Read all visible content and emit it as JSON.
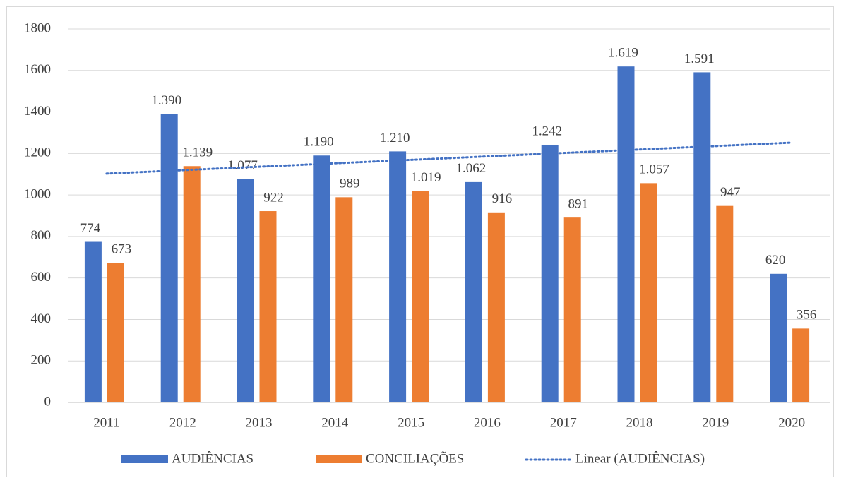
{
  "chart_data": {
    "type": "bar",
    "categories": [
      "2011",
      "2012",
      "2013",
      "2014",
      "2015",
      "2016",
      "2017",
      "2018",
      "2019",
      "2020"
    ],
    "series": [
      {
        "name": "AUDIÊNCIAS",
        "color": "#4472c4",
        "values": [
          774,
          1390,
          1077,
          1190,
          1210,
          1062,
          1242,
          1619,
          1591,
          620
        ],
        "value_labels": [
          "774",
          "1.390",
          "1.077",
          "1.190",
          "1.210",
          "1.062",
          "1.242",
          "1.619",
          "1.591",
          "620"
        ],
        "trendline": {
          "name": "Linear (AUDIÊNCIAS)",
          "type": "linear",
          "color": "#4472c4"
        }
      },
      {
        "name": "CONCILIAÇÕES",
        "color": "#ed7d31",
        "values": [
          673,
          1139,
          922,
          989,
          1019,
          916,
          891,
          1057,
          947,
          356
        ],
        "value_labels": [
          "673",
          "1.139",
          "922",
          "989",
          "1.019",
          "916",
          "891",
          "1.057",
          "947",
          "356"
        ]
      }
    ],
    "ylim": [
      0,
      1800
    ],
    "yticks": [
      0,
      200,
      400,
      600,
      800,
      1000,
      1200,
      1400,
      1600,
      1800
    ],
    "grid": true,
    "legend": "bottom"
  }
}
